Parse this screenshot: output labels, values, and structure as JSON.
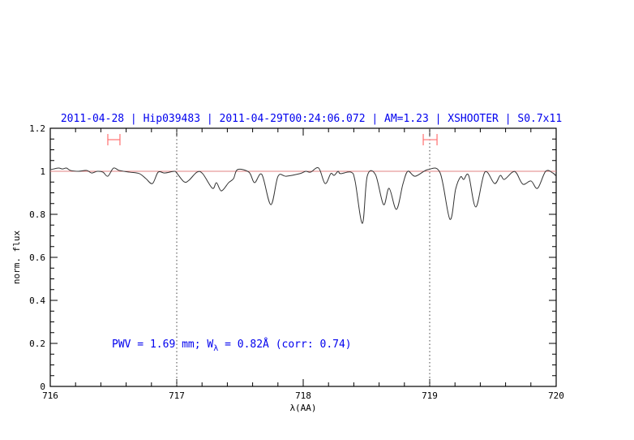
{
  "chart_data": {
    "type": "line",
    "title": "2011-04-28 | Hip039483 | 2011-04-29T00:24:06.072 | AM=1.23 | XSHOOTER | S0.7x11",
    "xlabel": "λ(AA)",
    "ylabel": "norm. flux",
    "xlim": [
      716,
      720
    ],
    "ylim": [
      0,
      1.2
    ],
    "x_ticks": [
      "716",
      "717",
      "718",
      "719",
      "720"
    ],
    "y_ticks": [
      "0",
      "0.2",
      "0.4",
      "0.6",
      "0.8",
      "1",
      "1.2"
    ],
    "grid": false,
    "reference_line": {
      "y": 1,
      "color": "#e08080"
    },
    "vertical_dotted_lines": [
      717,
      719
    ],
    "intervals": [
      {
        "x": [
          716.455,
          716.551
        ],
        "y": 1.147
      },
      {
        "x": [
          718.949,
          719.058
        ],
        "y": 1.147
      }
    ],
    "interval_color": "#ff7070",
    "series_color": "#333333",
    "annotation": {
      "prefix": "PWV = 1.69 mm; W",
      "subscript": "λ",
      "suffix": " = 0.82Å (corr: 0.74)"
    },
    "series": [
      {
        "x": [
          716.006,
          716.064,
          716.096,
          716.128,
          716.16,
          716.224,
          716.288,
          716.327,
          716.372,
          716.417,
          716.455,
          716.5,
          716.545,
          716.628,
          716.705,
          716.756,
          716.808,
          716.853,
          716.904,
          716.981,
          717.0,
          717.058,
          717.096,
          717.16,
          717.205,
          717.282,
          717.314,
          717.353,
          717.41,
          717.449,
          717.481,
          717.571,
          717.615,
          717.673,
          717.744,
          717.801,
          717.865,
          717.974,
          718.019,
          718.058,
          718.122,
          718.173,
          718.218,
          718.244,
          718.276,
          718.295,
          718.378,
          718.41,
          718.468,
          718.506,
          718.571,
          718.635,
          718.679,
          718.737,
          718.788,
          718.827,
          718.885,
          718.987,
          719.083,
          719.16,
          719.205,
          719.244,
          719.269,
          719.308,
          719.365,
          719.436,
          719.513,
          719.558,
          719.59,
          719.654,
          719.686,
          719.737,
          719.801,
          719.853,
          719.917,
          719.974,
          720.0
        ],
        "y": [
          1.008,
          1.015,
          1.011,
          1.015,
          1.004,
          1.0,
          1.004,
          0.992,
          1.0,
          0.996,
          0.977,
          1.015,
          1.004,
          0.996,
          0.989,
          0.966,
          0.943,
          0.996,
          0.992,
          1.0,
          0.992,
          0.951,
          0.958,
          0.996,
          0.989,
          0.921,
          0.947,
          0.909,
          0.947,
          0.966,
          1.008,
          0.996,
          0.947,
          0.985,
          0.845,
          0.977,
          0.977,
          0.989,
          1.0,
          0.996,
          1.015,
          0.943,
          0.989,
          0.981,
          1.0,
          0.989,
          0.996,
          0.955,
          0.758,
          0.977,
          0.985,
          0.845,
          0.921,
          0.823,
          0.94,
          1.0,
          0.977,
          1.008,
          0.992,
          0.777,
          0.917,
          0.974,
          0.962,
          0.981,
          0.834,
          0.996,
          0.943,
          0.981,
          0.962,
          0.996,
          0.992,
          0.94,
          0.955,
          0.921,
          1.0,
          0.992,
          0.977
        ]
      }
    ]
  }
}
